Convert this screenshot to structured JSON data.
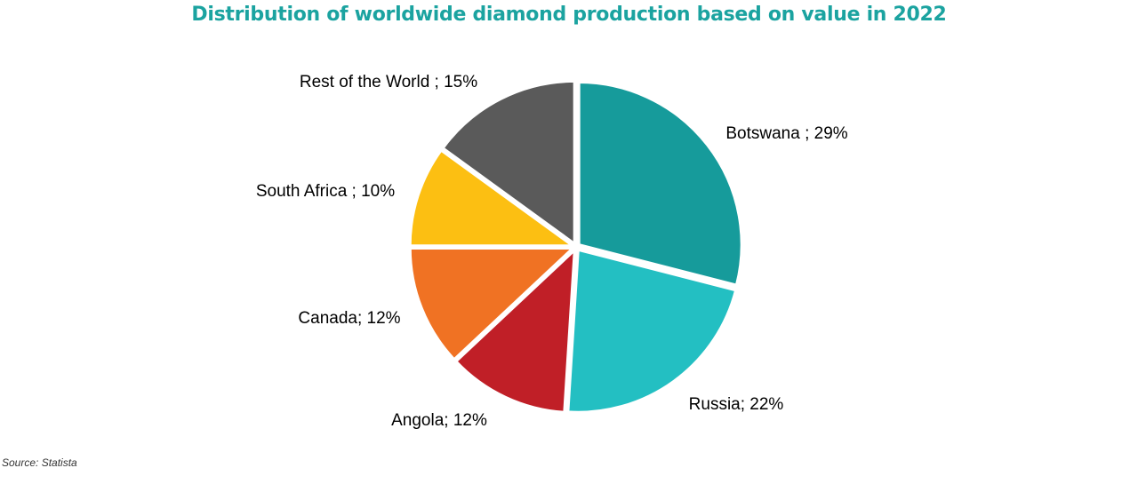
{
  "title": "Distribution of worldwide diamond production based on value in 2022",
  "source": "Source: Statista",
  "colors": {
    "title": "#1ba3a0",
    "slice_border": "#ffffff"
  },
  "chart_data": {
    "type": "pie",
    "title": "Distribution of worldwide diamond production based on value in 2022",
    "slices": [
      {
        "label": "Botswana",
        "label_text": "Botswana ; 29%",
        "value": 29,
        "color": "#169b9b"
      },
      {
        "label": "Russia",
        "label_text": "Russia; 22%",
        "value": 22,
        "color": "#23bfc2"
      },
      {
        "label": "Angola",
        "label_text": "Angola; 12%",
        "value": 12,
        "color": "#c01f27"
      },
      {
        "label": "Canada",
        "label_text": "Canada; 12%",
        "value": 12,
        "color": "#f07223"
      },
      {
        "label": "South Africa",
        "label_text": "South Africa ; 10%",
        "value": 10,
        "color": "#fcbf12"
      },
      {
        "label": "Rest of the World",
        "label_text": "Rest of the World ; 15%",
        "value": 15,
        "color": "#5a5a5a"
      }
    ],
    "start": "12 o'clock",
    "direction": "clockwise",
    "legend": "none",
    "data_labels": "outside"
  }
}
